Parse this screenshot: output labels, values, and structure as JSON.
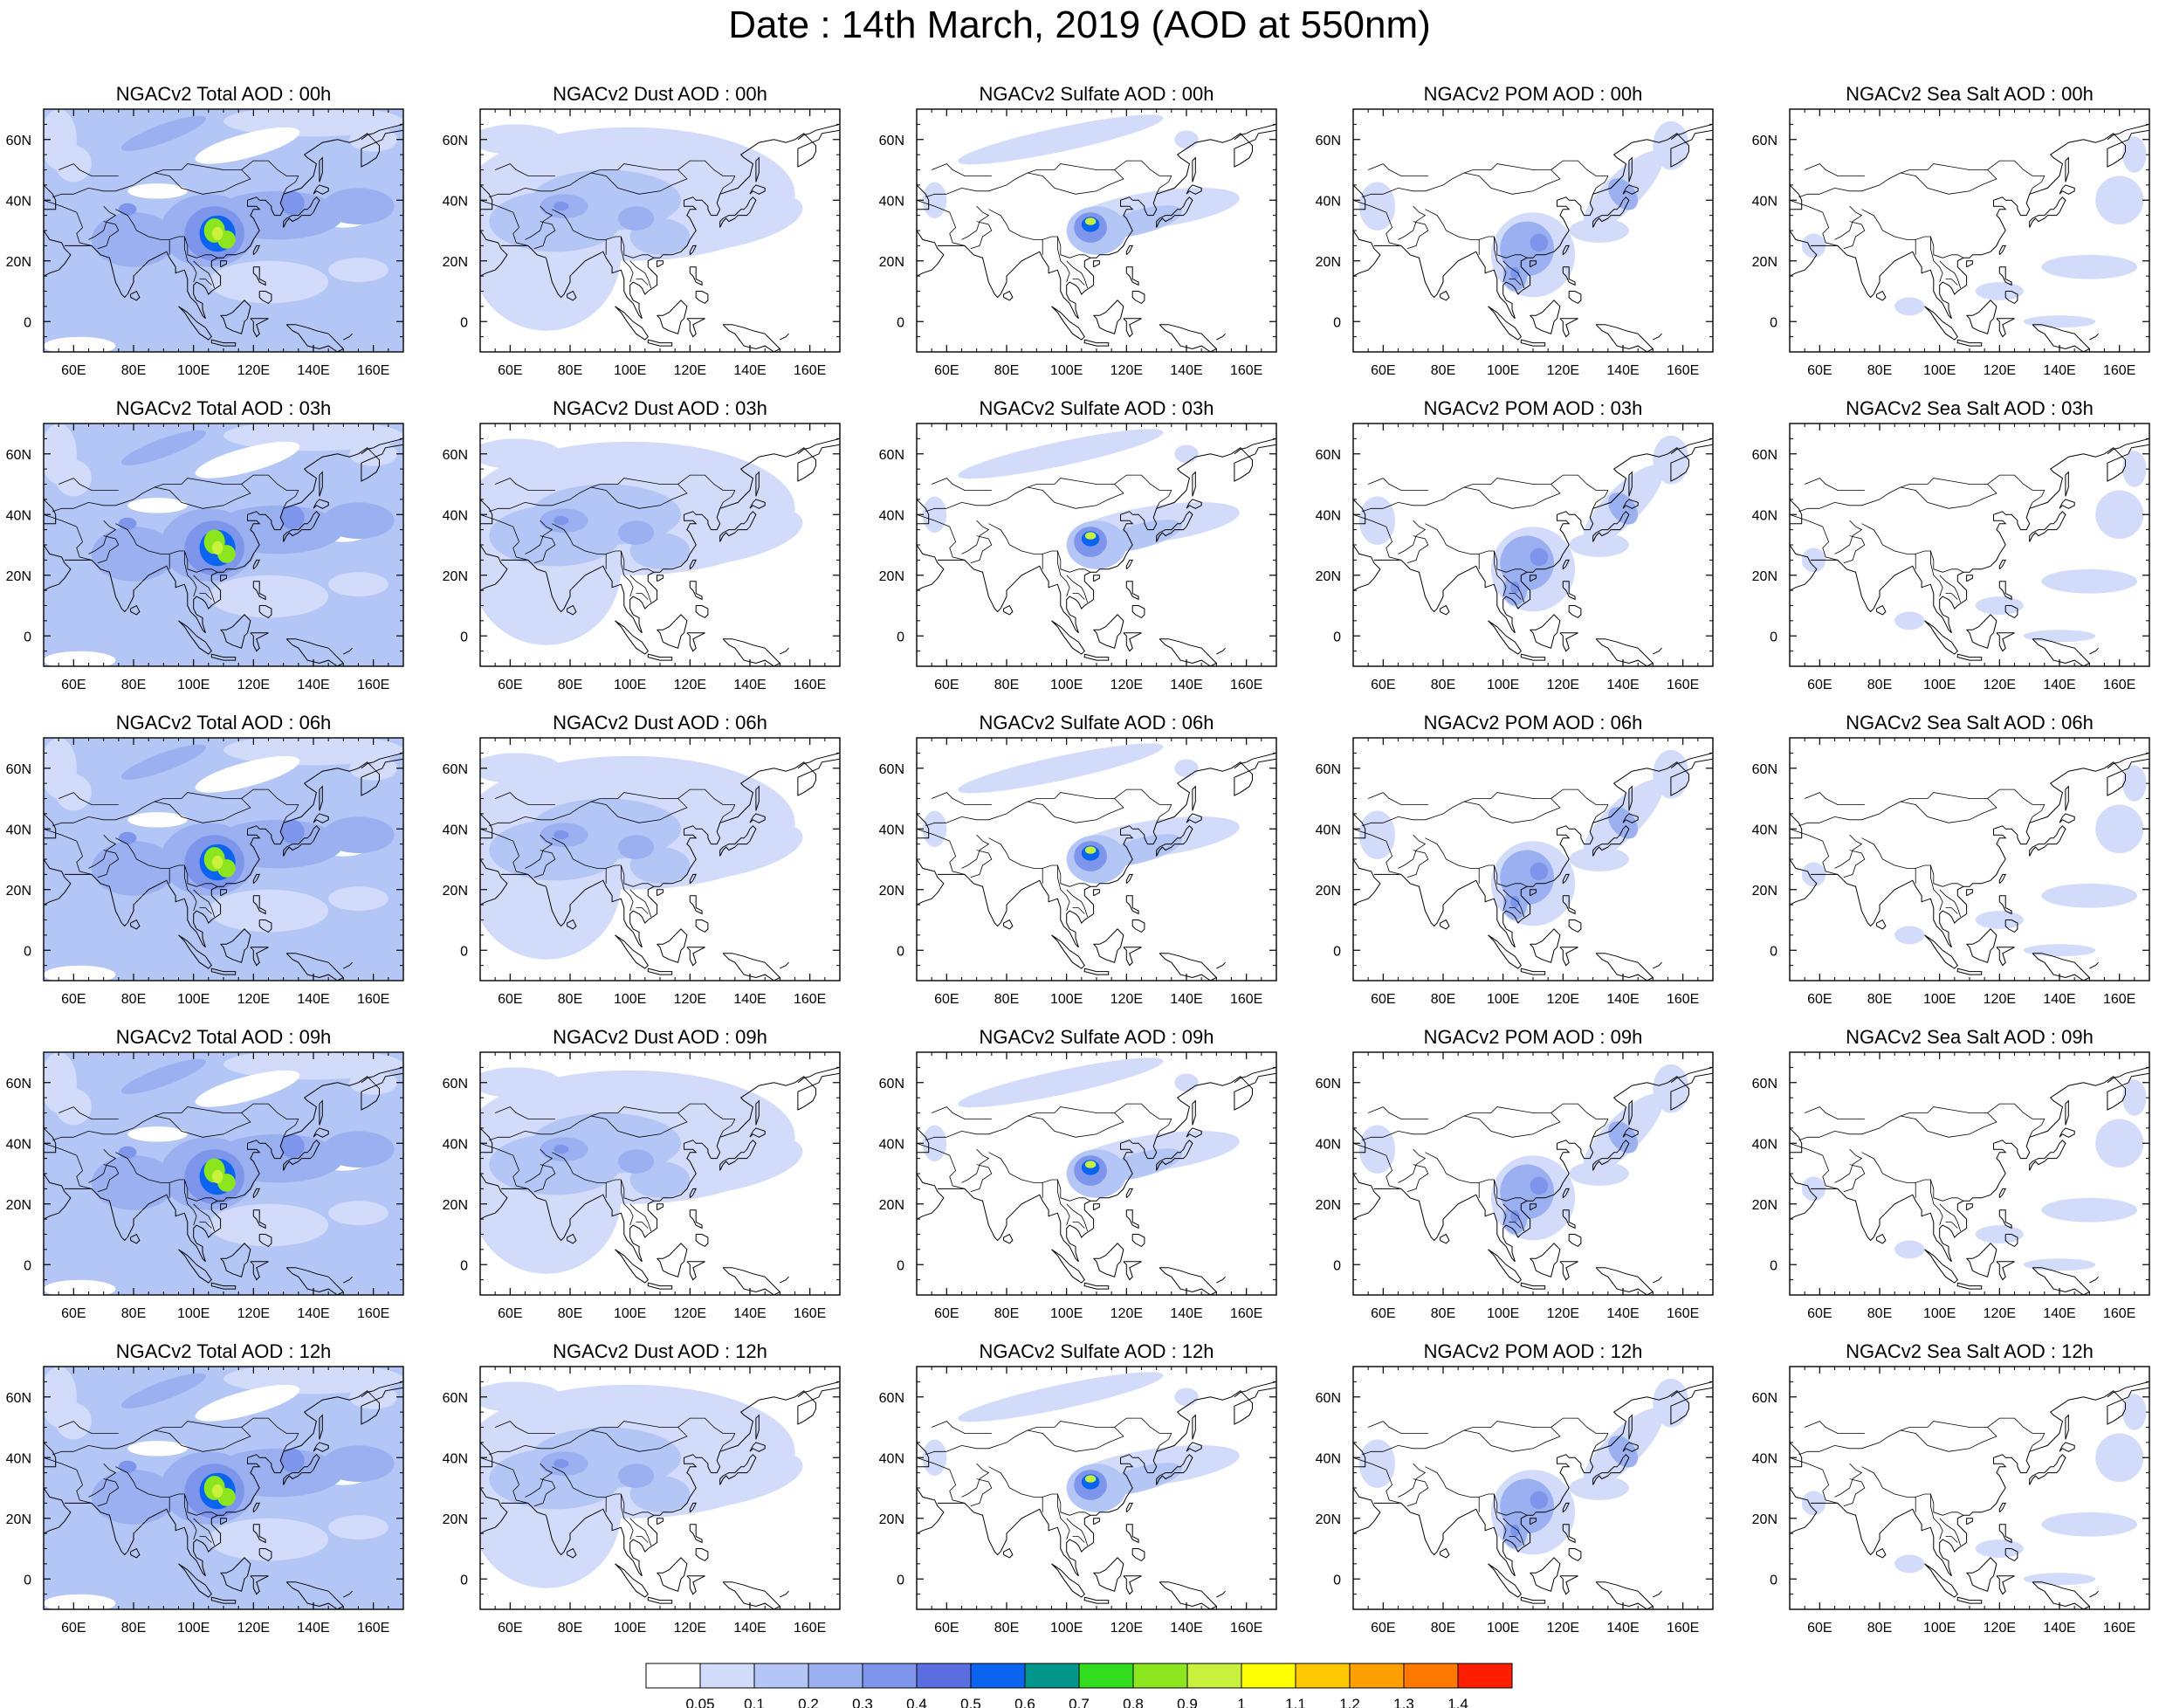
{
  "title": "Date : 14th March, 2019 (AOD at 550nm)",
  "panel_titles": [
    [
      "NGACv2 Total AOD : 00h",
      "NGACv2 Dust AOD : 00h",
      "NGACv2 Sulfate AOD : 00h",
      "NGACv2 POM AOD : 00h",
      "NGACv2 Sea Salt AOD : 00h"
    ],
    [
      "NGACv2 Total AOD : 03h",
      "NGACv2 Dust AOD : 03h",
      "NGACv2 Sulfate AOD : 03h",
      "NGACv2 POM AOD : 03h",
      "NGACv2 Sea Salt AOD : 03h"
    ],
    [
      "NGACv2 Total AOD : 06h",
      "NGACv2 Dust AOD : 06h",
      "NGACv2 Sulfate AOD : 06h",
      "NGACv2 POM AOD : 06h",
      "NGACv2 Sea Salt AOD : 06h"
    ],
    [
      "NGACv2 Total AOD : 09h",
      "NGACv2 Dust AOD : 09h",
      "NGACv2 Sulfate AOD : 09h",
      "NGACv2 POM AOD : 09h",
      "NGACv2 Sea Salt  AOD : 09h"
    ],
    [
      "NGACv2 Total AOD  : 12h",
      "NGACv2 Dust AOD : 12h",
      "NGACv2 Sulfate AOD : 12h",
      "NGACv2 POM  AOD : 12h",
      "NGACv2 Sea Salt  AOD : 12h"
    ]
  ],
  "map": {
    "lon_range": [
      50,
      170
    ],
    "lat_range": [
      -10,
      70
    ],
    "lon_ticks": [
      "60E",
      "80E",
      "100E",
      "120E",
      "140E",
      "160E"
    ],
    "lon_tick_values": [
      60,
      80,
      100,
      120,
      140,
      160
    ],
    "lat_ticks": [
      "0",
      "20N",
      "40N",
      "60N"
    ],
    "lat_tick_values": [
      0,
      20,
      40,
      60
    ]
  },
  "colorbar": {
    "labels": [
      "0.05",
      "0.1",
      "0.2",
      "0.3",
      "0.4",
      "0.5",
      "0.6",
      "0.7",
      "0.8",
      "0.9",
      "1",
      "1.1",
      "1.2",
      "1.3",
      "1.4"
    ],
    "colors": [
      "#ffffff",
      "#d2dcfa",
      "#b4c6f5",
      "#9bb0f0",
      "#7d96eb",
      "#5a6ee1",
      "#0a64f0",
      "#00968c",
      "#32dc1e",
      "#8ce61e",
      "#c8f03c",
      "#ffff00",
      "#ffc800",
      "#ffa000",
      "#ff7800",
      "#ff1e00"
    ]
  }
}
